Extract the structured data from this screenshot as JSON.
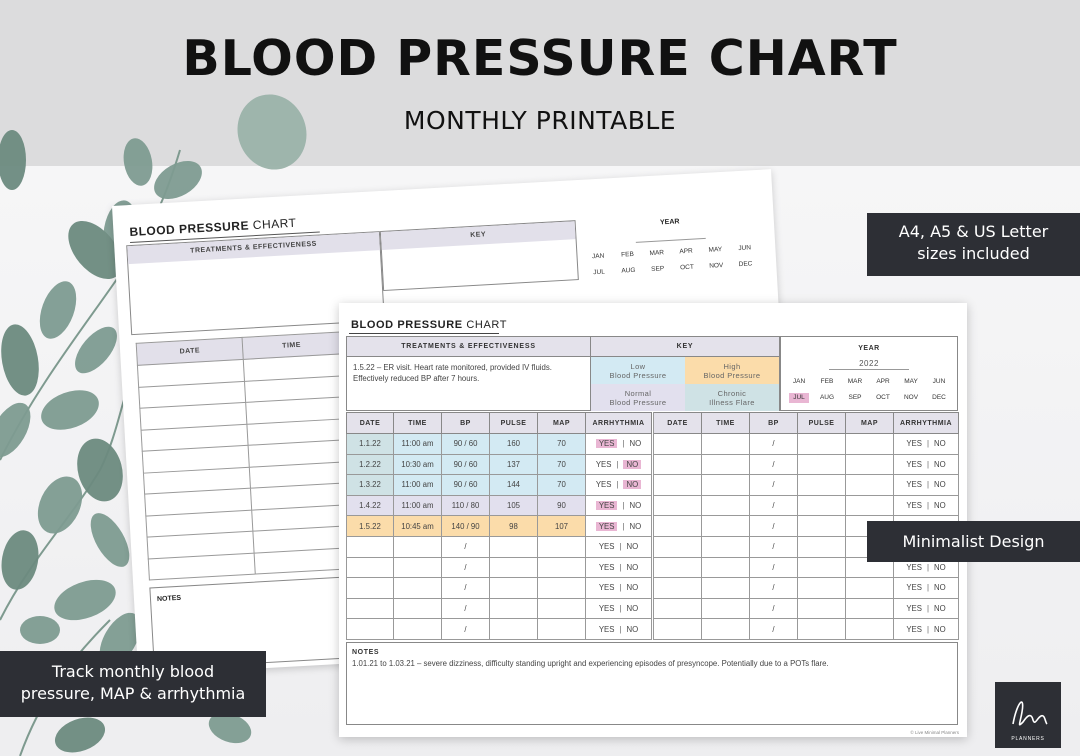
{
  "header": {
    "title": "BLOOD PRESSURE CHART",
    "subtitle": "MONTHLY PRINTABLE"
  },
  "badges": {
    "sizes_line1": "A4, A5 & US Letter",
    "sizes_line2": "sizes included",
    "design": "Minimalist Design",
    "track_line1": "Track monthly blood",
    "track_line2": "pressure, MAP & arrhythmia"
  },
  "sheet": {
    "title_bold": "BLOOD PRESSURE",
    "title_light": "CHART",
    "treatments_header": "TREATMENTS & EFFECTIVENESS",
    "treatments_text": "1.5.22 – ER visit. Heart rate monitored, provided IV fluids. Effectively reduced BP after 7 hours.",
    "key_header": "KEY",
    "key": [
      {
        "line1": "Low",
        "line2": "Blood Pressure",
        "color": "#d3eaf3"
      },
      {
        "line1": "High",
        "line2": "Blood Pressure",
        "color": "#fbdcaa"
      },
      {
        "line1": "Normal",
        "line2": "Blood Pressure",
        "color": "#e2e0ee"
      },
      {
        "line1": "Chronic",
        "line2": "Illness Flare",
        "color": "#cfe2e5"
      }
    ],
    "year_label": "YEAR",
    "year_value": "2022",
    "months": [
      "JAN",
      "FEB",
      "MAR",
      "APR",
      "MAY",
      "JUN",
      "JUL",
      "AUG",
      "SEP",
      "OCT",
      "NOV",
      "DEC"
    ],
    "selected_month": "JUL",
    "columns": [
      "DATE",
      "TIME",
      "BP",
      "PULSE",
      "MAP",
      "ARRHYTHMIA"
    ],
    "rows": [
      {
        "date": "1.1.22",
        "time": "11:00 am",
        "bp": "90 / 60",
        "pulse": "160",
        "map": "70",
        "arrhythmia": "YES"
      },
      {
        "date": "1.2.22",
        "time": "10:30 am",
        "bp": "90 / 60",
        "pulse": "137",
        "map": "70",
        "arrhythmia": "NO"
      },
      {
        "date": "1.3.22",
        "time": "11:00 am",
        "bp": "90 / 60",
        "pulse": "144",
        "map": "70",
        "arrhythmia": "NO"
      },
      {
        "date": "1.4.22",
        "time": "11:00 am",
        "bp": "110 / 80",
        "pulse": "105",
        "map": "90",
        "arrhythmia": "YES"
      },
      {
        "date": "1.5.22",
        "time": "10:45 am",
        "bp": "140 / 90",
        "pulse": "98",
        "map": "107",
        "arrhythmia": "YES"
      }
    ],
    "yes_label": "YES",
    "no_label": "NO",
    "bp_slash": "/",
    "notes_label": "NOTES",
    "notes_text": "1.01.21 to 1.03.21 – severe dizziness, difficulty standing upright and experiencing episodes of presyncope. Potentially due to a POTs flare.",
    "copyright": "© Live Minimal Planners"
  },
  "logo": {
    "text": "PLANNERS"
  }
}
